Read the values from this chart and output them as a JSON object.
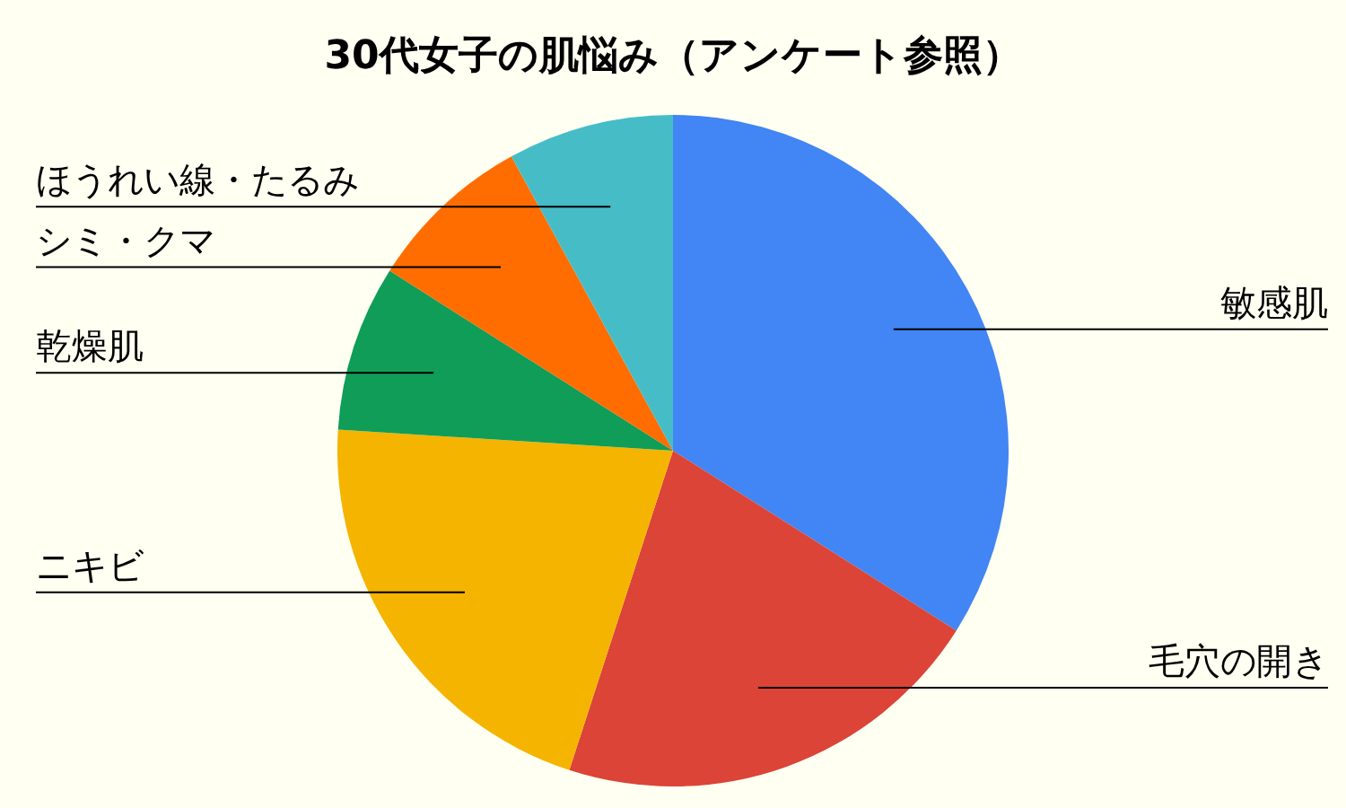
{
  "chart_data": {
    "type": "pie",
    "title": "30代女子の肌悩み（アンケート参照）",
    "categories": [
      "敏感肌",
      "毛穴の開き",
      "ニキビ",
      "乾燥肌",
      "シミ・クマ",
      "ほうれい線・たるみ"
    ],
    "values": [
      34,
      21,
      21,
      8,
      8,
      8
    ],
    "colors": [
      "#4285f4",
      "#db4437",
      "#f4b400",
      "#0f9d58",
      "#ff6d01",
      "#46bdc6"
    ]
  }
}
